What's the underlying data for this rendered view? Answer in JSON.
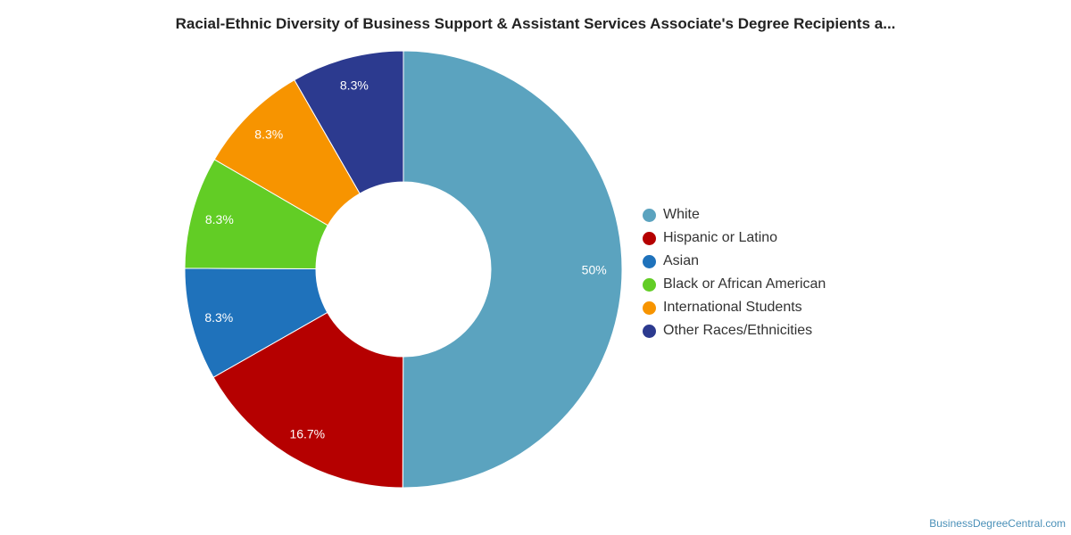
{
  "title": "Racial-Ethnic Diversity of Business Support & Assistant Services Associate's Degree Recipients a...",
  "watermark": "BusinessDegreeCentral.com",
  "chart_data": {
    "type": "pie",
    "donut": true,
    "legend_position": "right",
    "series": [
      {
        "name": "White",
        "value": 50,
        "label": "50%",
        "color": "#5ba3bf"
      },
      {
        "name": "Hispanic or Latino",
        "value": 16.7,
        "label": "16.7%",
        "color": "#b50000"
      },
      {
        "name": "Asian",
        "value": 8.3,
        "label": "8.3%",
        "color": "#1f72bb"
      },
      {
        "name": "Black or African American",
        "value": 8.3,
        "label": "8.3%",
        "color": "#62cd25"
      },
      {
        "name": "International Students",
        "value": 8.3,
        "label": "8.3%",
        "color": "#f79400"
      },
      {
        "name": "Other Races/Ethnicities",
        "value": 8.3,
        "label": "8.3%",
        "color": "#2c3a8f"
      }
    ]
  }
}
